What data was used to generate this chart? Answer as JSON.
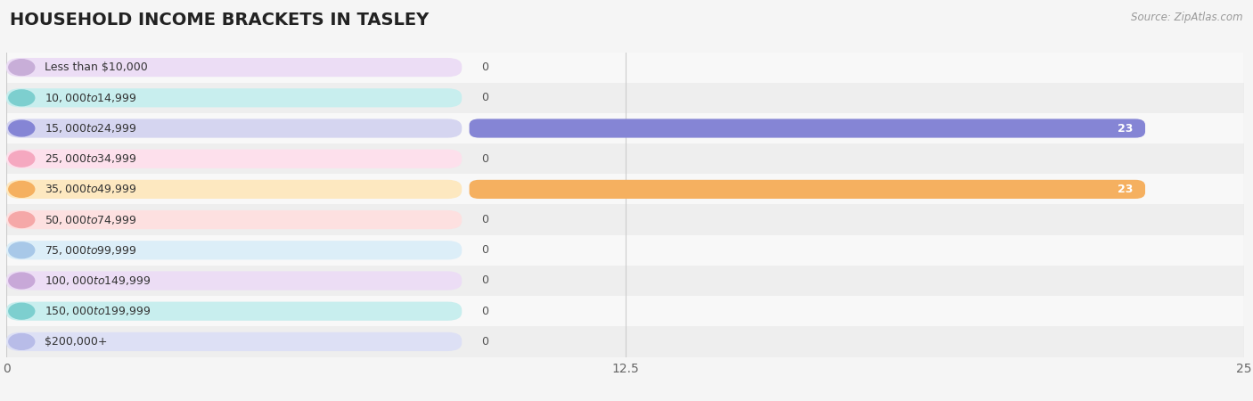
{
  "title": "HOUSEHOLD INCOME BRACKETS IN TASLEY",
  "source": "Source: ZipAtlas.com",
  "categories": [
    "Less than $10,000",
    "$10,000 to $14,999",
    "$15,000 to $24,999",
    "$25,000 to $34,999",
    "$35,000 to $49,999",
    "$50,000 to $74,999",
    "$75,000 to $99,999",
    "$100,000 to $149,999",
    "$150,000 to $199,999",
    "$200,000+"
  ],
  "values": [
    0,
    0,
    23,
    0,
    23,
    0,
    0,
    0,
    0,
    0
  ],
  "bar_colors": [
    "#c8aed8",
    "#7dcfcf",
    "#8585d5",
    "#f5a8c0",
    "#f5b060",
    "#f5a8a8",
    "#a8c8e8",
    "#c8a8d8",
    "#7dcfcf",
    "#b8bce8"
  ],
  "label_bg_colors": [
    "#ecddf5",
    "#c8eeee",
    "#d5d5f0",
    "#fde0ec",
    "#fde8c0",
    "#fde0e0",
    "#dceef8",
    "#ecddf5",
    "#c8eeee",
    "#dde0f5"
  ],
  "xlim": [
    0,
    25
  ],
  "xticks": [
    0,
    12.5,
    25
  ],
  "background_color": "#f5f5f5",
  "row_bg_even": "#f8f8f8",
  "row_bg_odd": "#eeeeee",
  "title_fontsize": 14,
  "bar_height": 0.62
}
